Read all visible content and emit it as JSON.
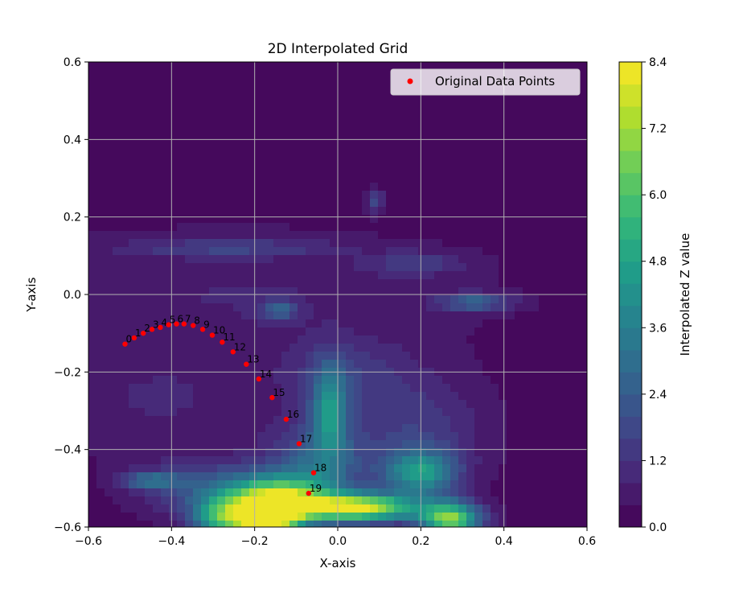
{
  "chart_data": {
    "type": "contourf+scatter",
    "title": "2D Interpolated Grid",
    "xlabel": "X-axis",
    "ylabel": "Y-axis",
    "xlim": [
      -0.6,
      0.6
    ],
    "ylim": [
      -0.6,
      0.6
    ],
    "xticks": [
      -0.6,
      -0.4,
      -0.2,
      0.0,
      0.2,
      0.4,
      0.6
    ],
    "yticks": [
      -0.6,
      -0.4,
      -0.2,
      0.0,
      0.2,
      0.4,
      0.6
    ],
    "xtick_labels": [
      "−0.6",
      "−0.4",
      "−0.2",
      "0.0",
      "0.2",
      "0.4",
      "0.6"
    ],
    "ytick_labels": [
      "−0.6",
      "−0.4",
      "−0.2",
      "0.0",
      "0.2",
      "0.4",
      "0.6"
    ],
    "grid": true,
    "legend": {
      "position": "top-right",
      "label": "Original Data Points"
    },
    "points_color": "#ff0000",
    "points": [
      {
        "label": "0",
        "x": -0.512,
        "y": -0.128
      },
      {
        "label": "1",
        "x": -0.49,
        "y": -0.112
      },
      {
        "label": "2",
        "x": -0.468,
        "y": -0.1
      },
      {
        "label": "3",
        "x": -0.447,
        "y": -0.09
      },
      {
        "label": "4",
        "x": -0.427,
        "y": -0.085
      },
      {
        "label": "5",
        "x": -0.407,
        "y": -0.078
      },
      {
        "label": "6",
        "x": -0.388,
        "y": -0.076
      },
      {
        "label": "7",
        "x": -0.37,
        "y": -0.076
      },
      {
        "label": "8",
        "x": -0.348,
        "y": -0.08
      },
      {
        "label": "9",
        "x": -0.325,
        "y": -0.09
      },
      {
        "label": "10",
        "x": -0.302,
        "y": -0.105
      },
      {
        "label": "11",
        "x": -0.278,
        "y": -0.123
      },
      {
        "label": "12",
        "x": -0.252,
        "y": -0.148
      },
      {
        "label": "13",
        "x": -0.22,
        "y": -0.18
      },
      {
        "label": "14",
        "x": -0.19,
        "y": -0.218
      },
      {
        "label": "15",
        "x": -0.158,
        "y": -0.266
      },
      {
        "label": "16",
        "x": -0.124,
        "y": -0.322
      },
      {
        "label": "17",
        "x": -0.093,
        "y": -0.385
      },
      {
        "label": "18",
        "x": -0.058,
        "y": -0.46
      },
      {
        "label": "19",
        "x": -0.07,
        "y": -0.513
      }
    ],
    "colorbar": {
      "label": "Interpolated Z value",
      "min": 0.0,
      "max": 8.4,
      "levels": 21,
      "ticks": [
        0.0,
        1.2,
        2.4,
        3.6,
        4.8,
        6.0,
        7.2,
        8.4
      ],
      "tick_labels": [
        "0.0",
        "1.2",
        "2.4",
        "3.6",
        "4.8",
        "6.0",
        "7.2",
        "8.4"
      ],
      "colormap": "viridis"
    },
    "field": {
      "background_z": 0.2,
      "blobs": [
        {
          "x": -0.25,
          "y": 0.0,
          "sx": 0.42,
          "sy": 0.12,
          "z": 0.6
        },
        {
          "x": -0.43,
          "y": -0.28,
          "sx": 0.22,
          "sy": 0.1,
          "z": 0.6
        },
        {
          "x": -0.45,
          "y": -0.48,
          "sx": 0.05,
          "sy": 0.015,
          "z": 2.4
        },
        {
          "x": -0.3,
          "y": -0.5,
          "sx": 0.12,
          "sy": 0.05,
          "z": 1.8
        },
        {
          "x": -0.26,
          "y": 0.12,
          "sx": 0.18,
          "sy": 0.015,
          "z": 1.2
        },
        {
          "x": -0.14,
          "y": -0.04,
          "sx": 0.03,
          "sy": 0.02,
          "z": 2.0
        },
        {
          "x": 0.09,
          "y": 0.24,
          "sx": 0.015,
          "sy": 0.02,
          "z": 1.6
        },
        {
          "x": 0.33,
          "y": -0.02,
          "sx": 0.06,
          "sy": 0.015,
          "z": 2.4
        },
        {
          "x": 0.19,
          "y": 0.08,
          "sx": 0.08,
          "sy": 0.02,
          "z": 1.2
        },
        {
          "x": -0.02,
          "y": -0.3,
          "sx": 0.03,
          "sy": 0.08,
          "z": 3.5
        },
        {
          "x": -0.05,
          "y": -0.45,
          "sx": 0.08,
          "sy": 0.08,
          "z": 2.4
        },
        {
          "x": -0.15,
          "y": -0.53,
          "sx": 0.08,
          "sy": 0.04,
          "z": 6.5
        },
        {
          "x": -0.17,
          "y": -0.58,
          "sx": 0.05,
          "sy": 0.03,
          "z": 8.2
        },
        {
          "x": 0.05,
          "y": -0.55,
          "sx": 0.1,
          "sy": 0.025,
          "z": 7.5
        },
        {
          "x": 0.2,
          "y": -0.46,
          "sx": 0.06,
          "sy": 0.04,
          "z": 4.0
        },
        {
          "x": 0.27,
          "y": -0.58,
          "sx": 0.05,
          "sy": 0.03,
          "z": 6.5
        },
        {
          "x": -0.28,
          "y": -0.58,
          "sx": 0.05,
          "sy": 0.04,
          "z": 4.5
        },
        {
          "x": 0.18,
          "y": -0.35,
          "sx": 0.12,
          "sy": 0.1,
          "z": 1.3
        },
        {
          "x": 0.02,
          "y": -0.2,
          "sx": 0.1,
          "sy": 0.06,
          "z": 1.0
        }
      ]
    }
  }
}
